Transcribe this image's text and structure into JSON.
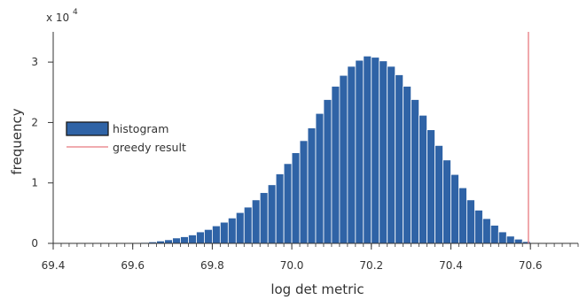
{
  "chart_data": {
    "type": "bar",
    "xlabel": "log det metric",
    "ylabel": "frequency",
    "xlim": [
      69.4,
      70.72
    ],
    "ylim": [
      0,
      3.5
    ],
    "y_multiplier_label": "x 10",
    "y_multiplier_exponent": "4",
    "x_ticks": [
      "69.4",
      "69.6",
      "69.8",
      "70.0",
      "70.2",
      "70.4",
      "70.6"
    ],
    "x_tick_values": [
      69.4,
      69.6,
      69.8,
      70.0,
      70.2,
      70.4,
      70.6
    ],
    "y_ticks": [
      "0",
      "1",
      "2",
      "3"
    ],
    "y_tick_values": [
      0,
      1,
      2,
      3
    ],
    "grid": false,
    "legend_placement": "left",
    "series": [
      {
        "name": "histogram",
        "type": "bar",
        "color": "#2f63a6",
        "bin_width": 0.02,
        "x": [
          69.59,
          69.61,
          69.63,
          69.65,
          69.67,
          69.69,
          69.71,
          69.73,
          69.75,
          69.77,
          69.79,
          69.81,
          69.83,
          69.85,
          69.87,
          69.89,
          69.91,
          69.93,
          69.95,
          69.97,
          69.99,
          70.01,
          70.03,
          70.05,
          70.07,
          70.09,
          70.11,
          70.13,
          70.15,
          70.17,
          70.19,
          70.21,
          70.23,
          70.25,
          70.27,
          70.29,
          70.31,
          70.33,
          70.35,
          70.37,
          70.39,
          70.41,
          70.43,
          70.45,
          70.47,
          70.49,
          70.51,
          70.53,
          70.55,
          70.57,
          70.59
        ],
        "values": [
          0.005,
          0.01,
          0.015,
          0.025,
          0.04,
          0.06,
          0.09,
          0.11,
          0.14,
          0.19,
          0.23,
          0.29,
          0.35,
          0.42,
          0.51,
          0.6,
          0.72,
          0.84,
          0.97,
          1.15,
          1.32,
          1.5,
          1.7,
          1.91,
          2.15,
          2.38,
          2.6,
          2.78,
          2.93,
          3.03,
          3.1,
          3.08,
          3.02,
          2.93,
          2.79,
          2.6,
          2.38,
          2.12,
          1.88,
          1.62,
          1.38,
          1.14,
          0.92,
          0.72,
          0.55,
          0.41,
          0.3,
          0.19,
          0.12,
          0.07,
          0.03
        ]
      },
      {
        "name": "greedy result",
        "type": "vline",
        "color": "#e8797f",
        "x": 70.595
      }
    ]
  }
}
